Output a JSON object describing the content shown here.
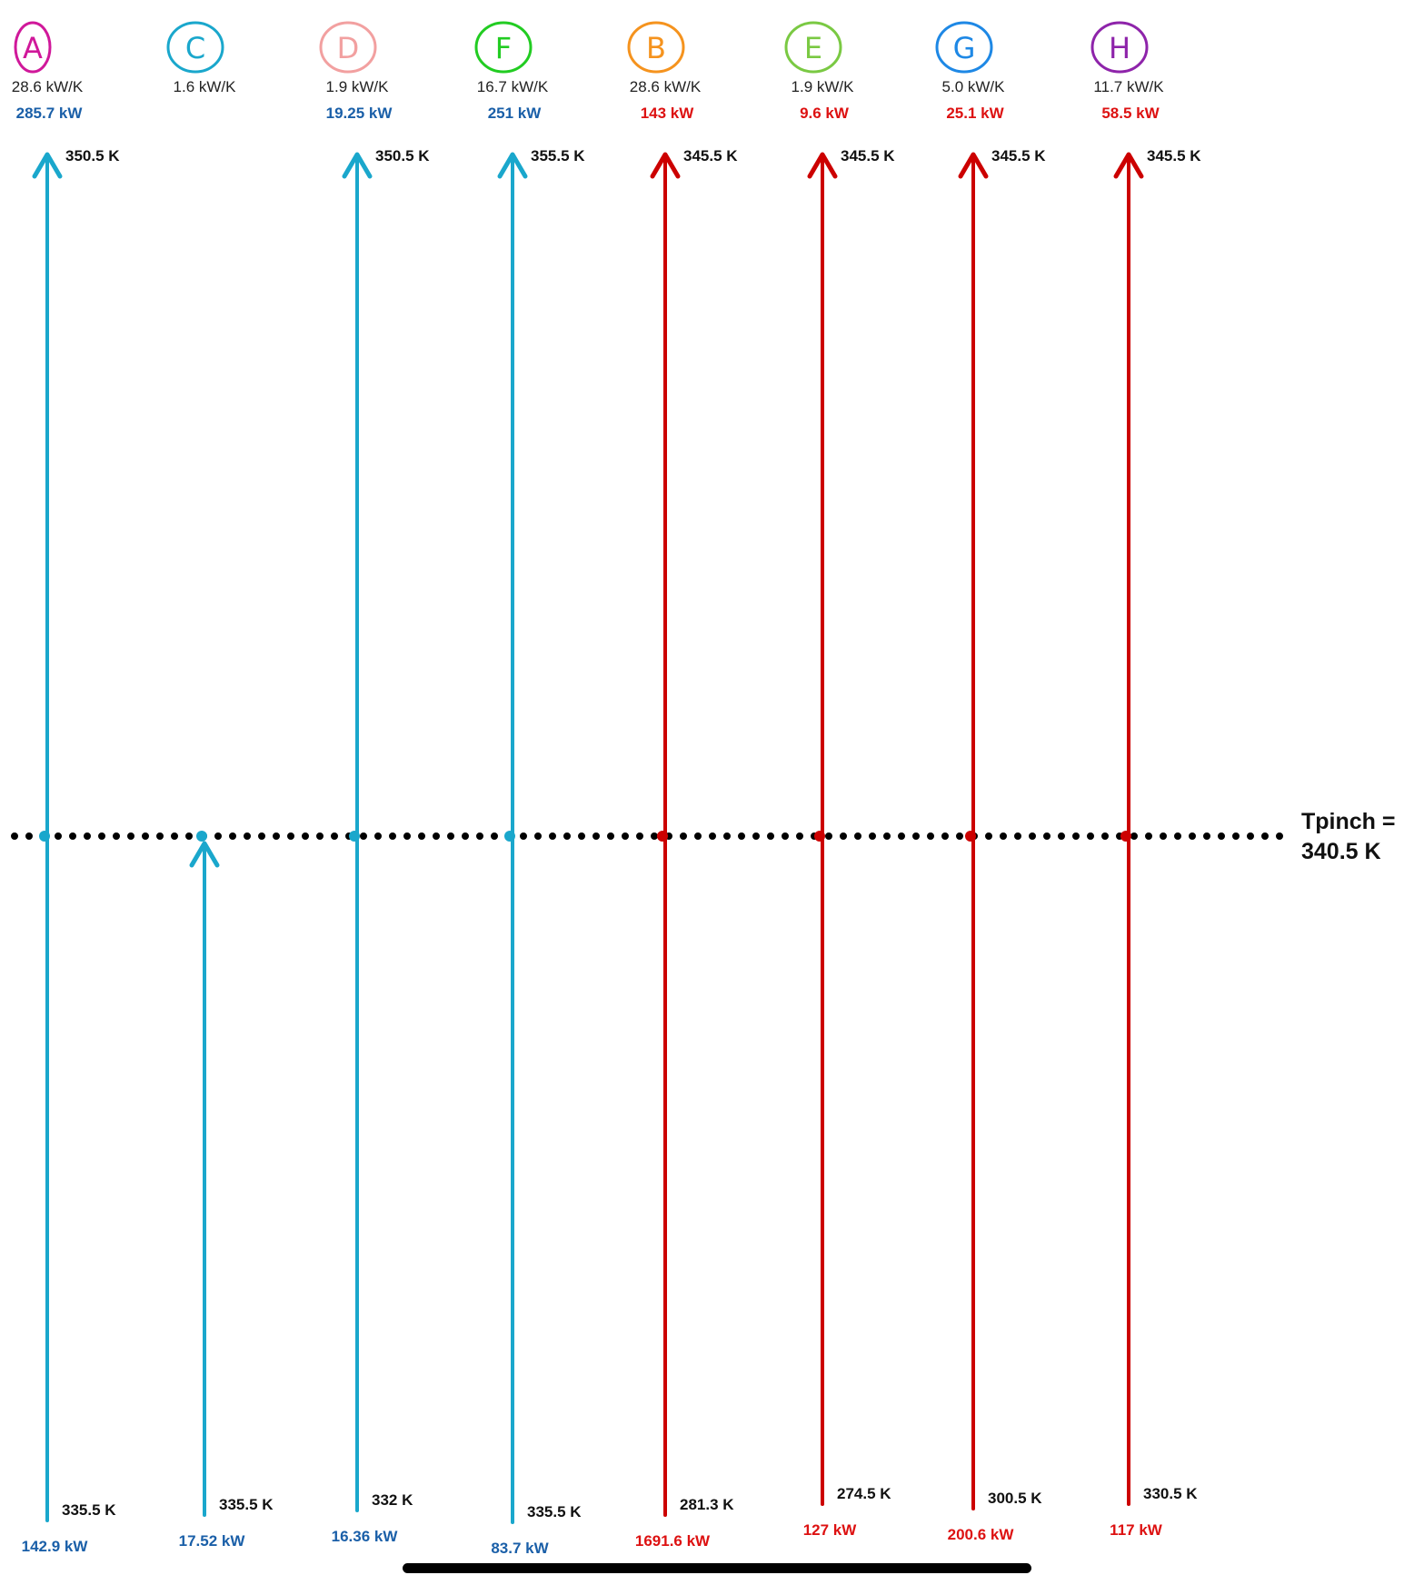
{
  "pinch": {
    "label_line1": "Tpinch =",
    "label_line2": "340.5 K",
    "dot_color": "#000000"
  },
  "colors": {
    "cold_stream": "#1aa7cc",
    "hot_stream": "#cc0000",
    "cold_duty_text": "#1a5fa8",
    "hot_duty_text": "#dd1111"
  },
  "streams": [
    {
      "id": "A",
      "kind": "cold",
      "badge_color": "#d0189a",
      "cp": "28.6 kW/K",
      "duty_top": "285.7 kW",
      "t_top": "350.5 K",
      "t_bottom": "335.5 K",
      "duty_bottom": "142.9 kW",
      "spans_pinch": true
    },
    {
      "id": "C",
      "kind": "cold",
      "badge_color": "#1aa7cc",
      "cp": "1.6 kW/K",
      "duty_top": "",
      "t_top": "",
      "t_bottom": "335.5 K",
      "duty_bottom": "17.52 kW",
      "spans_pinch": false
    },
    {
      "id": "D",
      "kind": "cold",
      "badge_color": "#f2a0a0",
      "cp": "1.9 kW/K",
      "duty_top": "19.25 kW",
      "t_top": "350.5 K",
      "t_bottom": "332 K",
      "duty_bottom": "16.36 kW",
      "spans_pinch": true
    },
    {
      "id": "F",
      "kind": "cold",
      "badge_color": "#22cc22",
      "cp": "16.7 kW/K",
      "duty_top": "251 kW",
      "t_top": "355.5 K",
      "t_bottom": "335.5 K",
      "duty_bottom": "83.7 kW",
      "spans_pinch": true
    },
    {
      "id": "B",
      "kind": "hot",
      "badge_color": "#f5931e",
      "cp": "28.6 kW/K",
      "duty_top": "143 kW",
      "t_top": "345.5 K",
      "t_bottom": "281.3 K",
      "duty_bottom": "1691.6 kW",
      "spans_pinch": true
    },
    {
      "id": "E",
      "kind": "hot",
      "badge_color": "#7ac943",
      "cp": "1.9 kW/K",
      "duty_top": "9.6 kW",
      "t_top": "345.5 K",
      "t_bottom": "274.5 K",
      "duty_bottom": "127 kW",
      "spans_pinch": true
    },
    {
      "id": "G",
      "kind": "hot",
      "badge_color": "#1e88e5",
      "cp": "5.0 kW/K",
      "duty_top": "25.1 kW",
      "t_top": "345.5 K",
      "t_bottom": "300.5 K",
      "duty_bottom": "200.6 kW",
      "spans_pinch": true
    },
    {
      "id": "H",
      "kind": "hot",
      "badge_color": "#8e24aa",
      "cp": "11.7 kW/K",
      "duty_top": "58.5 kW",
      "t_top": "345.5 K",
      "t_bottom": "330.5 K",
      "duty_bottom": "117 kW",
      "spans_pinch": true
    }
  ]
}
